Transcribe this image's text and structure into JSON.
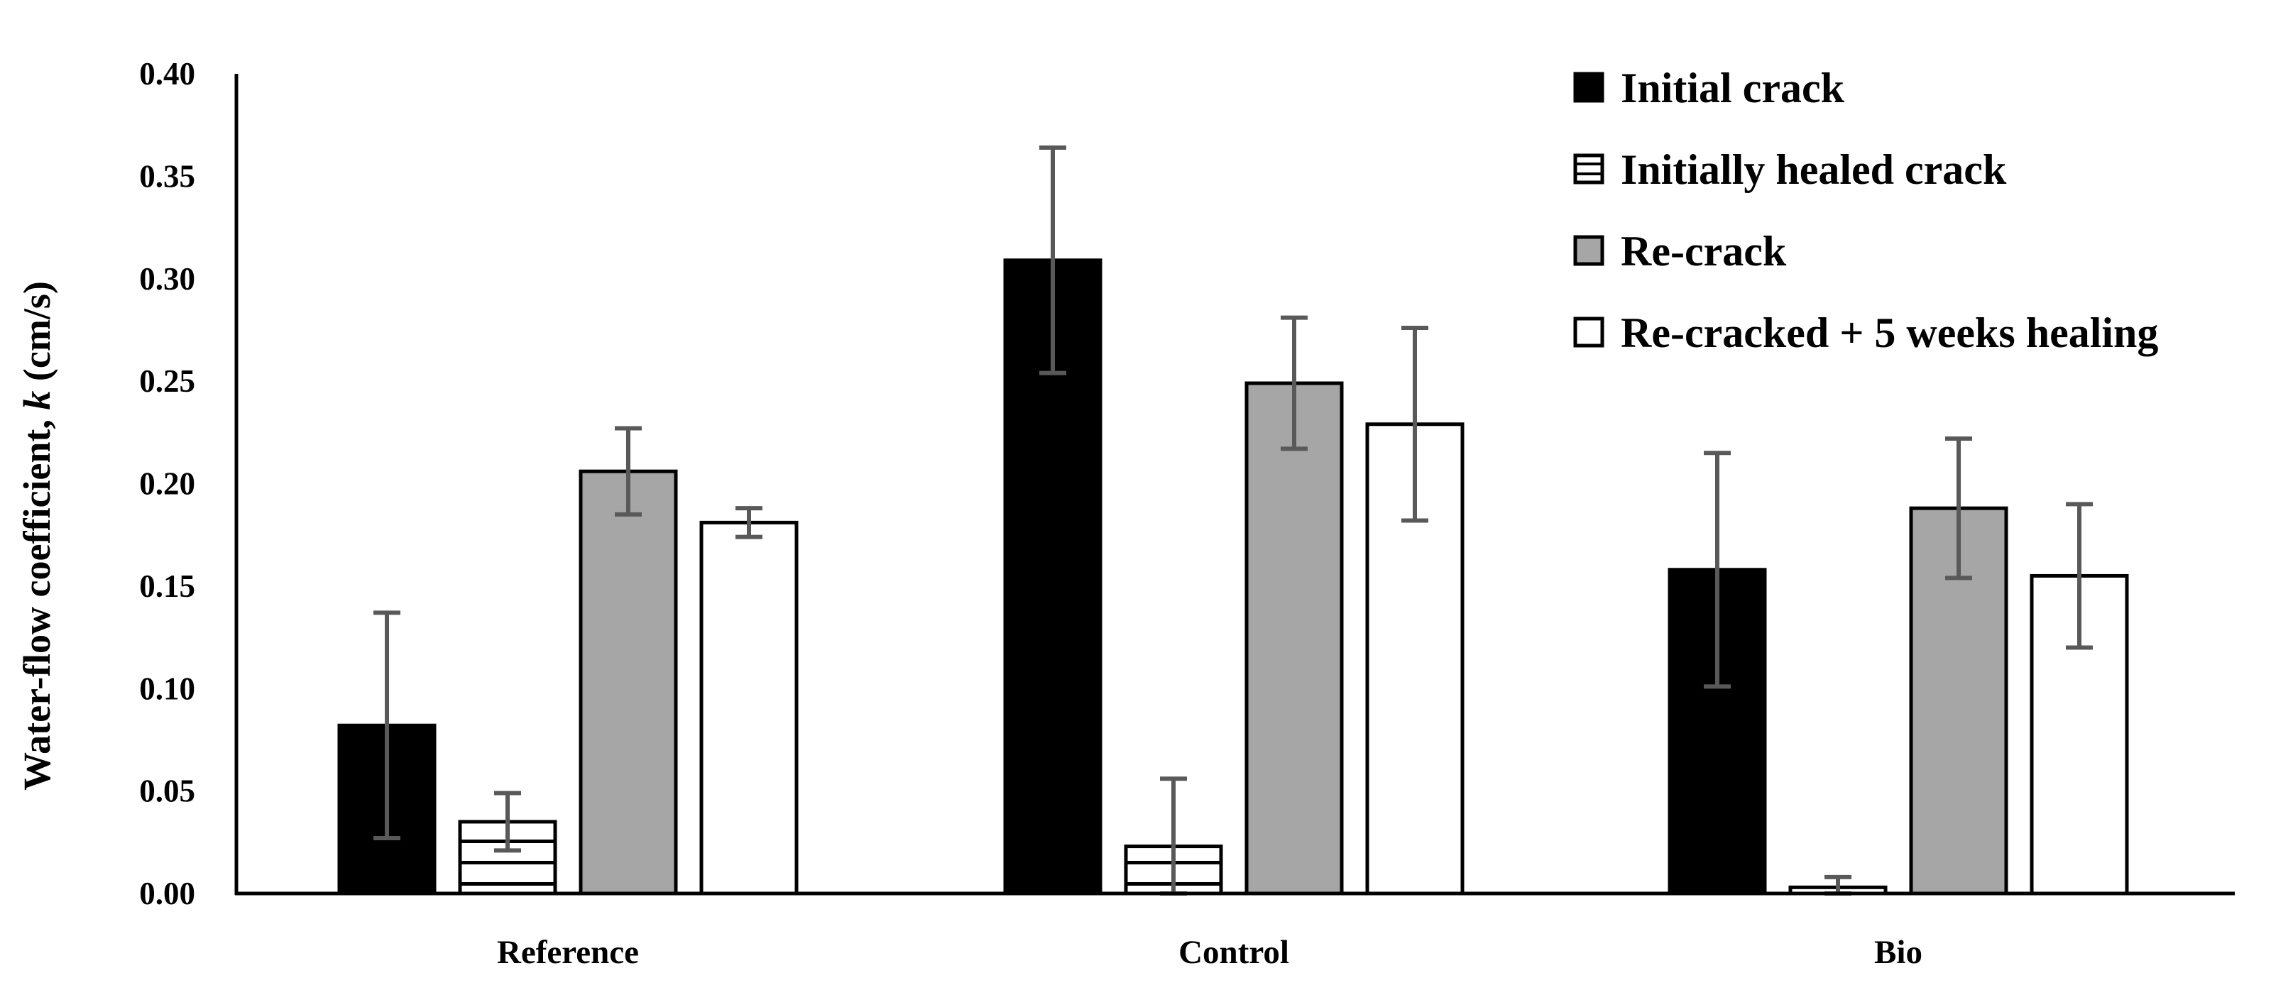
{
  "chart_data": {
    "type": "bar",
    "ylabel_prefix": "Water-flow coefficient, ",
    "ylabel_var": "k",
    "ylabel_suffix": " (cm/s)",
    "xlabel": "",
    "ylim": [
      0,
      0.4
    ],
    "yticks": [
      "0.00",
      "0.05",
      "0.10",
      "0.15",
      "0.20",
      "0.25",
      "0.30",
      "0.35",
      "0.40"
    ],
    "categories": [
      "Reference",
      "Control",
      "Bio"
    ],
    "series": [
      {
        "name": "Initial crack",
        "pattern": "solid-black",
        "values": [
          0.082,
          0.309,
          0.158
        ],
        "errors": [
          0.055,
          0.055,
          0.057
        ]
      },
      {
        "name": "Initially healed crack",
        "pattern": "horizontal-lines",
        "values": [
          0.035,
          0.023,
          0.003
        ],
        "errors": [
          0.014,
          0.033,
          0.005
        ]
      },
      {
        "name": "Re-crack",
        "pattern": "solid-gray",
        "values": [
          0.206,
          0.249,
          0.188
        ],
        "errors": [
          0.021,
          0.032,
          0.034
        ]
      },
      {
        "name": "Re-cracked + 5 weeks healing",
        "pattern": "white",
        "values": [
          0.181,
          0.229,
          0.155
        ],
        "errors": [
          0.007,
          0.047,
          0.035
        ]
      }
    ],
    "legend_position": "top-right",
    "colors": {
      "black": "#000000",
      "gray": "#a6a6a6",
      "white": "#ffffff",
      "errorbar": "#595959"
    }
  }
}
